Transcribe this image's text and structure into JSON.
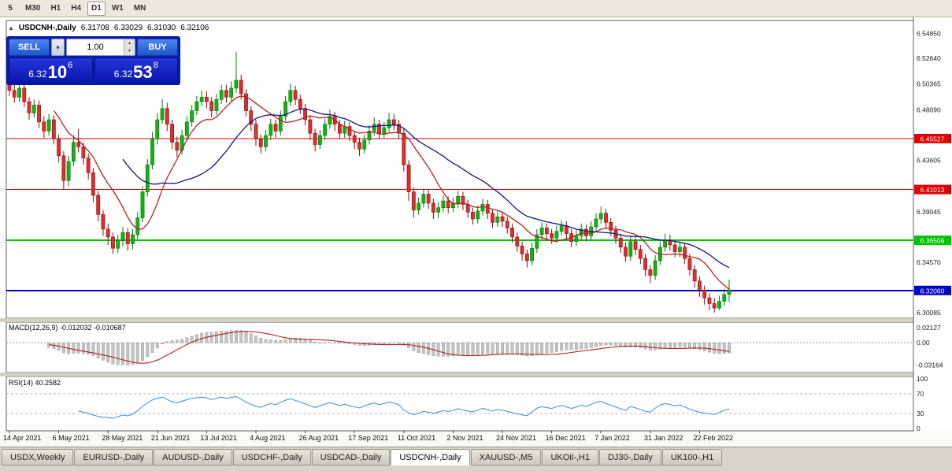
{
  "toolbar": {
    "items": [
      {
        "label": "5"
      },
      {
        "label": "M30"
      },
      {
        "label": "H1"
      },
      {
        "label": "H4"
      },
      {
        "label": "D1",
        "active": true
      },
      {
        "label": "W1"
      },
      {
        "label": "MN"
      }
    ]
  },
  "chart_header": {
    "title": "USDCNH-,Daily",
    "open": "6.31708",
    "high": "6.33029",
    "low": "6.31030",
    "close": "6.32106"
  },
  "trade_panel": {
    "sell_label": "SELL",
    "buy_label": "BUY",
    "volume": "1.00",
    "bid_main": "6.32",
    "bid_big": "10",
    "bid_sup": "6",
    "ask_main": "6.32",
    "ask_big": "53",
    "ask_sup": "8"
  },
  "indicators": {
    "macd_label": "MACD(12,26,9) -0.012032 -0.010687",
    "rsi_label": "RSI(14) 40.2582"
  },
  "tabs": [
    {
      "label": "USDX,Weekly"
    },
    {
      "label": "EURUSD-,Daily"
    },
    {
      "label": "AUDUSD-,Daily"
    },
    {
      "label": "USDCHF-,Daily"
    },
    {
      "label": "USDCAD-,Daily"
    },
    {
      "label": "USDCNH-,Daily",
      "active": true
    },
    {
      "label": "XAUUSD-,M5"
    },
    {
      "label": "UKOil-,H1"
    },
    {
      "label": "DJ30-,Daily"
    },
    {
      "label": "UK100-,H1"
    }
  ],
  "chart_data": {
    "type": "candlestick",
    "symbol": "USDCNH",
    "timeframe": "Daily",
    "x_labels": [
      "14 Apr 2021",
      "6 May 2021",
      "28 May 2021",
      "21 Jun 2021",
      "13 Jul 2021",
      "4 Aug 2021",
      "26 Aug 2021",
      "17 Sep 2021",
      "11 Oct 2021",
      "2 Nov 2021",
      "24 Nov 2021",
      "16 Dec 2021",
      "7 Jan 2022",
      "31 Jan 2022",
      "22 Feb 2022"
    ],
    "x_label_every": 10,
    "ylim": [
      6.296,
      6.56
    ],
    "y_ticks": [
      "6.54850",
      "6.52640",
      "6.50365",
      "6.48090",
      "6.43605",
      "6.39045",
      "6.34570",
      "6.30085"
    ],
    "levels": [
      {
        "value": 6.45527,
        "label": "6.45527",
        "color": "#dd0000",
        "width": 1
      },
      {
        "value": 6.41013,
        "label": "6.41013",
        "color": "#dd0000",
        "width": 1
      },
      {
        "value": 6.36506,
        "label": "6.36506",
        "color": "#00c400",
        "width": 2
      },
      {
        "value": 6.3206,
        "label": "6.32060",
        "color": "#0000cc",
        "width": 2
      }
    ],
    "up_color": "#16b016",
    "up_stroke": "#067806",
    "down_color": "#d93030",
    "down_stroke": "#8f0a0a",
    "overlays": [
      {
        "name": "ma-fast",
        "period": 10,
        "color": "#b22222"
      },
      {
        "name": "ma-slow",
        "period": 24,
        "color": "#14147e"
      }
    ],
    "macd": {
      "params": [
        12,
        26,
        9
      ],
      "value": "-0.012032",
      "signal_value": "-0.010687",
      "ylim": [
        -0.04,
        0.027
      ],
      "y_ticks": [
        "0.02127",
        "0.00",
        "-0.03164"
      ],
      "histogram_color": "#c4c4c4",
      "signal_color": "#b22222"
    },
    "rsi": {
      "period": 14,
      "value": "40.2582",
      "levels": [
        70,
        30
      ],
      "y_ticks": [
        "100",
        "70",
        "30",
        "0"
      ],
      "color": "#4f93d2"
    },
    "candles": [
      [
        6.503,
        6.508,
        6.493,
        6.498
      ],
      [
        6.498,
        6.503,
        6.487,
        6.492
      ],
      [
        6.492,
        6.505,
        6.488,
        6.5
      ],
      [
        6.5,
        6.504,
        6.483,
        6.488
      ],
      [
        6.488,
        6.492,
        6.472,
        6.478
      ],
      [
        6.478,
        6.49,
        6.474,
        6.485
      ],
      [
        6.485,
        6.489,
        6.465,
        6.47
      ],
      [
        6.47,
        6.475,
        6.456,
        6.462
      ],
      [
        6.462,
        6.477,
        6.458,
        6.472
      ],
      [
        6.472,
        6.476,
        6.45,
        6.455
      ],
      [
        6.455,
        6.459,
        6.434,
        6.44
      ],
      [
        6.44,
        6.444,
        6.41,
        6.418
      ],
      [
        6.418,
        6.44,
        6.413,
        6.435
      ],
      [
        6.435,
        6.458,
        6.431,
        6.452
      ],
      [
        6.452,
        6.464,
        6.443,
        6.448
      ],
      [
        6.448,
        6.452,
        6.432,
        6.438
      ],
      [
        6.438,
        6.442,
        6.419,
        6.425
      ],
      [
        6.425,
        6.429,
        6.399,
        6.405
      ],
      [
        6.405,
        6.409,
        6.382,
        6.388
      ],
      [
        6.388,
        6.392,
        6.369,
        6.375
      ],
      [
        6.375,
        6.38,
        6.361,
        6.368
      ],
      [
        6.368,
        6.372,
        6.353,
        6.358
      ],
      [
        6.358,
        6.37,
        6.354,
        6.365
      ],
      [
        6.365,
        6.377,
        6.36,
        6.372
      ],
      [
        6.372,
        6.376,
        6.356,
        6.362
      ],
      [
        6.362,
        6.375,
        6.357,
        6.37
      ],
      [
        6.37,
        6.39,
        6.366,
        6.385
      ],
      [
        6.385,
        6.413,
        6.381,
        6.408
      ],
      [
        6.408,
        6.437,
        6.404,
        6.432
      ],
      [
        6.432,
        6.461,
        6.428,
        6.455
      ],
      [
        6.455,
        6.478,
        6.45,
        6.472
      ],
      [
        6.472,
        6.49,
        6.468,
        6.482
      ],
      [
        6.482,
        6.487,
        6.462,
        6.468
      ],
      [
        6.468,
        6.472,
        6.446,
        6.452
      ],
      [
        6.452,
        6.457,
        6.439,
        6.445
      ],
      [
        6.445,
        6.463,
        6.441,
        6.458
      ],
      [
        6.458,
        6.475,
        6.454,
        6.47
      ],
      [
        6.47,
        6.485,
        6.466,
        6.48
      ],
      [
        6.48,
        6.493,
        6.476,
        6.488
      ],
      [
        6.488,
        6.498,
        6.484,
        6.492
      ],
      [
        6.492,
        6.497,
        6.482,
        6.488
      ],
      [
        6.488,
        6.492,
        6.474,
        6.48
      ],
      [
        6.48,
        6.495,
        6.476,
        6.49
      ],
      [
        6.49,
        6.503,
        6.486,
        6.498
      ],
      [
        6.498,
        6.503,
        6.487,
        6.492
      ],
      [
        6.492,
        6.506,
        6.488,
        6.5
      ],
      [
        6.5,
        6.532,
        6.496,
        6.507
      ],
      [
        6.507,
        6.512,
        6.49,
        6.495
      ],
      [
        6.495,
        6.499,
        6.475,
        6.48
      ],
      [
        6.48,
        6.484,
        6.462,
        6.468
      ],
      [
        6.468,
        6.472,
        6.449,
        6.455
      ],
      [
        6.455,
        6.459,
        6.442,
        6.448
      ],
      [
        6.448,
        6.463,
        6.444,
        6.458
      ],
      [
        6.458,
        6.473,
        6.454,
        6.468
      ],
      [
        6.468,
        6.472,
        6.456,
        6.462
      ],
      [
        6.462,
        6.48,
        6.458,
        6.475
      ],
      [
        6.475,
        6.493,
        6.471,
        6.488
      ],
      [
        6.488,
        6.504,
        6.484,
        6.498
      ],
      [
        6.498,
        6.502,
        6.485,
        6.49
      ],
      [
        6.49,
        6.494,
        6.477,
        6.482
      ],
      [
        6.482,
        6.486,
        6.467,
        6.472
      ],
      [
        6.472,
        6.476,
        6.454,
        6.46
      ],
      [
        6.46,
        6.464,
        6.444,
        6.45
      ],
      [
        6.45,
        6.463,
        6.446,
        6.458
      ],
      [
        6.458,
        6.473,
        6.454,
        6.468
      ],
      [
        6.468,
        6.481,
        6.464,
        6.475
      ],
      [
        6.475,
        6.479,
        6.462,
        6.468
      ],
      [
        6.468,
        6.472,
        6.455,
        6.46
      ],
      [
        6.46,
        6.471,
        6.456,
        6.466
      ],
      [
        6.466,
        6.47,
        6.453,
        6.458
      ],
      [
        6.458,
        6.462,
        6.446,
        6.452
      ],
      [
        6.452,
        6.456,
        6.44,
        6.446
      ],
      [
        6.446,
        6.459,
        6.442,
        6.454
      ],
      [
        6.454,
        6.467,
        6.45,
        6.462
      ],
      [
        6.462,
        6.474,
        6.458,
        6.468
      ],
      [
        6.468,
        6.472,
        6.455,
        6.46
      ],
      [
        6.46,
        6.47,
        6.456,
        6.465
      ],
      [
        6.465,
        6.478,
        6.461,
        6.472
      ],
      [
        6.472,
        6.477,
        6.463,
        6.468
      ],
      [
        6.468,
        6.472,
        6.455,
        6.46
      ],
      [
        6.46,
        6.464,
        6.426,
        6.432
      ],
      [
        6.432,
        6.436,
        6.4,
        6.408
      ],
      [
        6.408,
        6.412,
        6.385,
        6.392
      ],
      [
        6.392,
        6.403,
        6.388,
        6.398
      ],
      [
        6.398,
        6.411,
        6.394,
        6.406
      ],
      [
        6.406,
        6.41,
        6.393,
        6.398
      ],
      [
        6.398,
        6.402,
        6.384,
        6.39
      ],
      [
        6.39,
        6.399,
        6.385,
        6.394
      ],
      [
        6.394,
        6.405,
        6.39,
        6.4
      ],
      [
        6.4,
        6.404,
        6.389,
        6.394
      ],
      [
        6.394,
        6.403,
        6.39,
        6.398
      ],
      [
        6.398,
        6.409,
        6.394,
        6.404
      ],
      [
        6.404,
        6.408,
        6.392,
        6.397
      ],
      [
        6.397,
        6.401,
        6.385,
        6.39
      ],
      [
        6.39,
        6.394,
        6.379,
        6.384
      ],
      [
        6.384,
        6.396,
        6.38,
        6.391
      ],
      [
        6.391,
        6.402,
        6.387,
        6.397
      ],
      [
        6.397,
        6.401,
        6.384,
        6.389
      ],
      [
        6.389,
        6.393,
        6.376,
        6.381
      ],
      [
        6.381,
        6.391,
        6.377,
        6.386
      ],
      [
        6.386,
        6.39,
        6.377,
        6.382
      ],
      [
        6.382,
        6.386,
        6.371,
        6.376
      ],
      [
        6.376,
        6.38,
        6.363,
        6.368
      ],
      [
        6.368,
        6.372,
        6.355,
        6.36
      ],
      [
        6.36,
        6.364,
        6.347,
        6.353
      ],
      [
        6.353,
        6.357,
        6.341,
        6.347
      ],
      [
        6.347,
        6.363,
        6.343,
        6.358
      ],
      [
        6.358,
        6.375,
        6.354,
        6.37
      ],
      [
        6.37,
        6.381,
        6.366,
        6.376
      ],
      [
        6.376,
        6.38,
        6.366,
        6.371
      ],
      [
        6.371,
        6.375,
        6.362,
        6.367
      ],
      [
        6.367,
        6.378,
        6.363,
        6.373
      ],
      [
        6.373,
        6.383,
        6.369,
        6.378
      ],
      [
        6.378,
        6.382,
        6.366,
        6.371
      ],
      [
        6.371,
        6.375,
        6.359,
        6.364
      ],
      [
        6.364,
        6.374,
        6.36,
        6.369
      ],
      [
        6.369,
        6.38,
        6.365,
        6.375
      ],
      [
        6.375,
        6.379,
        6.364,
        6.369
      ],
      [
        6.369,
        6.382,
        6.365,
        6.377
      ],
      [
        6.377,
        6.389,
        6.373,
        6.384
      ],
      [
        6.384,
        6.395,
        6.38,
        6.389
      ],
      [
        6.389,
        6.393,
        6.376,
        6.381
      ],
      [
        6.381,
        6.385,
        6.369,
        6.374
      ],
      [
        6.374,
        6.378,
        6.362,
        6.367
      ],
      [
        6.367,
        6.371,
        6.354,
        6.359
      ],
      [
        6.359,
        6.363,
        6.346,
        6.351
      ],
      [
        6.351,
        6.369,
        6.347,
        6.364
      ],
      [
        6.364,
        6.368,
        6.352,
        6.357
      ],
      [
        6.357,
        6.361,
        6.344,
        6.349
      ],
      [
        6.349,
        6.353,
        6.333,
        6.339
      ],
      [
        6.339,
        6.343,
        6.327,
        6.334
      ],
      [
        6.334,
        6.352,
        6.33,
        6.347
      ],
      [
        6.347,
        6.364,
        6.343,
        6.359
      ],
      [
        6.359,
        6.371,
        6.355,
        6.365
      ],
      [
        6.365,
        6.37,
        6.356,
        6.361
      ],
      [
        6.361,
        6.365,
        6.35,
        6.355
      ],
      [
        6.355,
        6.364,
        6.35,
        6.359
      ],
      [
        6.359,
        6.363,
        6.344,
        6.349
      ],
      [
        6.349,
        6.353,
        6.334,
        6.339
      ],
      [
        6.339,
        6.343,
        6.323,
        6.329
      ],
      [
        6.329,
        6.333,
        6.315,
        6.321
      ],
      [
        6.321,
        6.325,
        6.308,
        6.314
      ],
      [
        6.314,
        6.318,
        6.303,
        6.309
      ],
      [
        6.309,
        6.314,
        6.301,
        6.305
      ],
      [
        6.305,
        6.316,
        6.303,
        6.311
      ],
      [
        6.311,
        6.322,
        6.307,
        6.317
      ],
      [
        6.31708,
        6.33029,
        6.3103,
        6.32106
      ]
    ]
  }
}
